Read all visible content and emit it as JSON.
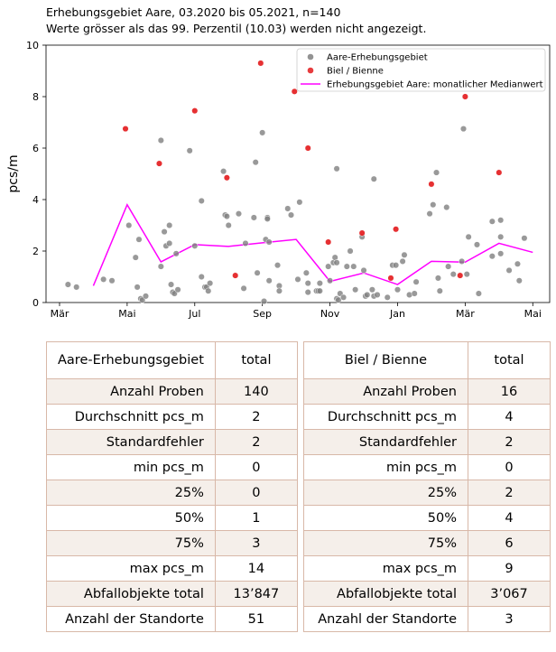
{
  "header": {
    "title_line1": "Erhebungsgebiet Aare, 03.2020 bis 05.2021, n=140",
    "title_line2": "Werte grösser als das 99. Perzentil (10.03) werden nicht angezeigt."
  },
  "chart_data": {
    "type": "scatter",
    "ylabel": "pcs/m",
    "xlabel": "",
    "ylim": [
      0,
      10
    ],
    "yticks": [
      0,
      2,
      4,
      6,
      8,
      10
    ],
    "xlim_months": [
      -0.4,
      14.5
    ],
    "xticks": [
      {
        "label": "Mär",
        "m": 0
      },
      {
        "label": "Mai",
        "m": 2
      },
      {
        "label": "Jul",
        "m": 4
      },
      {
        "label": "Sep",
        "m": 6
      },
      {
        "label": "Nov",
        "m": 8
      },
      {
        "label": "Jan",
        "m": 10
      },
      {
        "label": "Mär",
        "m": 12
      },
      {
        "label": "Mai",
        "m": 14
      }
    ],
    "legend_position": "top-right",
    "colors": {
      "grey": "#808080",
      "red": "#e31a1c",
      "line": "#ff00ff"
    },
    "series": [
      {
        "name": "Aare-Erhebungsgebiet",
        "kind": "scatter",
        "color": "#808080",
        "points": [
          [
            0.25,
            0.7
          ],
          [
            0.5,
            0.6
          ],
          [
            1.3,
            0.9
          ],
          [
            1.55,
            0.85
          ],
          [
            2.05,
            3.0
          ],
          [
            2.25,
            1.75
          ],
          [
            2.3,
            0.6
          ],
          [
            2.35,
            2.45
          ],
          [
            2.4,
            0.15
          ],
          [
            2.45,
            0.1
          ],
          [
            2.55,
            0.25
          ],
          [
            3.0,
            6.3
          ],
          [
            3.0,
            1.4
          ],
          [
            3.1,
            2.75
          ],
          [
            3.15,
            2.2
          ],
          [
            3.25,
            2.3
          ],
          [
            3.25,
            3.0
          ],
          [
            3.3,
            0.7
          ],
          [
            3.35,
            0.4
          ],
          [
            3.4,
            0.35
          ],
          [
            3.45,
            1.9
          ],
          [
            3.5,
            0.5
          ],
          [
            3.85,
            5.9
          ],
          [
            4.0,
            2.2
          ],
          [
            4.2,
            3.95
          ],
          [
            4.2,
            1.0
          ],
          [
            4.3,
            0.6
          ],
          [
            4.35,
            0.6
          ],
          [
            4.4,
            0.45
          ],
          [
            4.45,
            0.75
          ],
          [
            4.85,
            5.1
          ],
          [
            4.9,
            3.4
          ],
          [
            4.95,
            3.35
          ],
          [
            5.0,
            3.0
          ],
          [
            5.3,
            3.45
          ],
          [
            5.45,
            0.55
          ],
          [
            5.5,
            2.3
          ],
          [
            5.75,
            3.3
          ],
          [
            5.8,
            5.45
          ],
          [
            5.85,
            1.15
          ],
          [
            6.0,
            6.6
          ],
          [
            6.05,
            0.05
          ],
          [
            6.1,
            2.45
          ],
          [
            6.15,
            3.3
          ],
          [
            6.15,
            3.25
          ],
          [
            6.2,
            2.35
          ],
          [
            6.2,
            0.85
          ],
          [
            6.45,
            1.45
          ],
          [
            6.5,
            0.65
          ],
          [
            6.5,
            0.45
          ],
          [
            6.75,
            3.65
          ],
          [
            6.85,
            3.4
          ],
          [
            7.05,
            0.9
          ],
          [
            7.1,
            3.9
          ],
          [
            7.3,
            1.15
          ],
          [
            7.35,
            0.75
          ],
          [
            7.35,
            0.4
          ],
          [
            7.6,
            0.45
          ],
          [
            7.65,
            0.45
          ],
          [
            7.7,
            0.45
          ],
          [
            7.7,
            0.75
          ],
          [
            7.95,
            1.4
          ],
          [
            8.0,
            0.85
          ],
          [
            8.1,
            1.55
          ],
          [
            8.15,
            1.75
          ],
          [
            8.2,
            5.2
          ],
          [
            8.2,
            1.55
          ],
          [
            8.2,
            0.15
          ],
          [
            8.25,
            0.1
          ],
          [
            8.3,
            0.35
          ],
          [
            8.4,
            0.2
          ],
          [
            8.5,
            1.4
          ],
          [
            8.6,
            2.0
          ],
          [
            8.7,
            1.4
          ],
          [
            8.75,
            0.5
          ],
          [
            8.95,
            2.55
          ],
          [
            9.0,
            1.25
          ],
          [
            9.05,
            0.25
          ],
          [
            9.1,
            0.3
          ],
          [
            9.25,
            0.5
          ],
          [
            9.3,
            4.8
          ],
          [
            9.3,
            0.25
          ],
          [
            9.4,
            0.3
          ],
          [
            9.7,
            0.2
          ],
          [
            9.85,
            1.45
          ],
          [
            9.95,
            1.45
          ],
          [
            10.0,
            0.5
          ],
          [
            10.15,
            1.6
          ],
          [
            10.2,
            1.85
          ],
          [
            10.35,
            0.3
          ],
          [
            10.5,
            0.35
          ],
          [
            10.55,
            0.8
          ],
          [
            10.95,
            3.45
          ],
          [
            11.05,
            3.8
          ],
          [
            11.15,
            5.05
          ],
          [
            11.2,
            0.95
          ],
          [
            11.25,
            0.45
          ],
          [
            11.45,
            3.7
          ],
          [
            11.5,
            1.4
          ],
          [
            11.65,
            1.1
          ],
          [
            11.9,
            1.6
          ],
          [
            11.95,
            6.75
          ],
          [
            12.05,
            1.1
          ],
          [
            12.1,
            2.55
          ],
          [
            12.35,
            2.25
          ],
          [
            12.4,
            0.35
          ],
          [
            12.8,
            1.8
          ],
          [
            12.8,
            3.15
          ],
          [
            13.05,
            3.2
          ],
          [
            13.05,
            2.55
          ],
          [
            13.05,
            1.9
          ],
          [
            13.3,
            1.25
          ],
          [
            13.55,
            1.5
          ],
          [
            13.6,
            0.85
          ],
          [
            13.75,
            2.5
          ]
        ]
      },
      {
        "name": "Biel / Bienne",
        "kind": "scatter",
        "color": "#e31a1c",
        "points": [
          [
            1.95,
            6.75
          ],
          [
            2.95,
            5.4
          ],
          [
            4.0,
            7.45
          ],
          [
            4.95,
            4.85
          ],
          [
            5.2,
            1.05
          ],
          [
            5.95,
            9.3
          ],
          [
            6.95,
            8.2
          ],
          [
            7.35,
            6.0
          ],
          [
            7.95,
            2.35
          ],
          [
            8.95,
            2.7
          ],
          [
            9.8,
            0.95
          ],
          [
            9.95,
            2.85
          ],
          [
            11.0,
            4.6
          ],
          [
            11.85,
            1.05
          ],
          [
            12.0,
            8.0
          ],
          [
            13.0,
            5.05
          ]
        ]
      },
      {
        "name": "Erhebungsgebiet Aare: monatlicher Medianwert",
        "kind": "line",
        "color": "#ff00ff",
        "points": [
          [
            1.0,
            0.65
          ],
          [
            2.0,
            3.8
          ],
          [
            3.0,
            1.58
          ],
          [
            4.0,
            2.25
          ],
          [
            5.0,
            2.18
          ],
          [
            6.0,
            2.32
          ],
          [
            7.0,
            2.45
          ],
          [
            8.0,
            0.82
          ],
          [
            9.0,
            1.15
          ],
          [
            10.0,
            0.7
          ],
          [
            11.0,
            1.6
          ],
          [
            12.0,
            1.57
          ],
          [
            13.0,
            2.3
          ],
          [
            14.0,
            1.95
          ]
        ]
      }
    ]
  },
  "tables": {
    "aare": {
      "header": [
        "Aare-Erhebungsgebiet",
        "total"
      ],
      "rows": [
        [
          "Anzahl Proben",
          "140"
        ],
        [
          "Durchschnitt pcs_m",
          "2"
        ],
        [
          "Standardfehler",
          "2"
        ],
        [
          "min pcs_m",
          "0"
        ],
        [
          "25%",
          "0"
        ],
        [
          "50%",
          "1"
        ],
        [
          "75%",
          "3"
        ],
        [
          "max pcs_m",
          "14"
        ],
        [
          "Abfallobjekte total",
          "13’847"
        ],
        [
          "Anzahl der Standorte",
          "51"
        ]
      ]
    },
    "biel": {
      "header": [
        "Biel / Bienne",
        "total"
      ],
      "rows": [
        [
          "Anzahl Proben",
          "16"
        ],
        [
          "Durchschnitt pcs_m",
          "4"
        ],
        [
          "Standardfehler",
          "2"
        ],
        [
          "min pcs_m",
          "0"
        ],
        [
          "25%",
          "2"
        ],
        [
          "50%",
          "4"
        ],
        [
          "75%",
          "6"
        ],
        [
          "max pcs_m",
          "9"
        ],
        [
          "Abfallobjekte total",
          "3’067"
        ],
        [
          "Anzahl der Standorte",
          "3"
        ]
      ]
    }
  }
}
